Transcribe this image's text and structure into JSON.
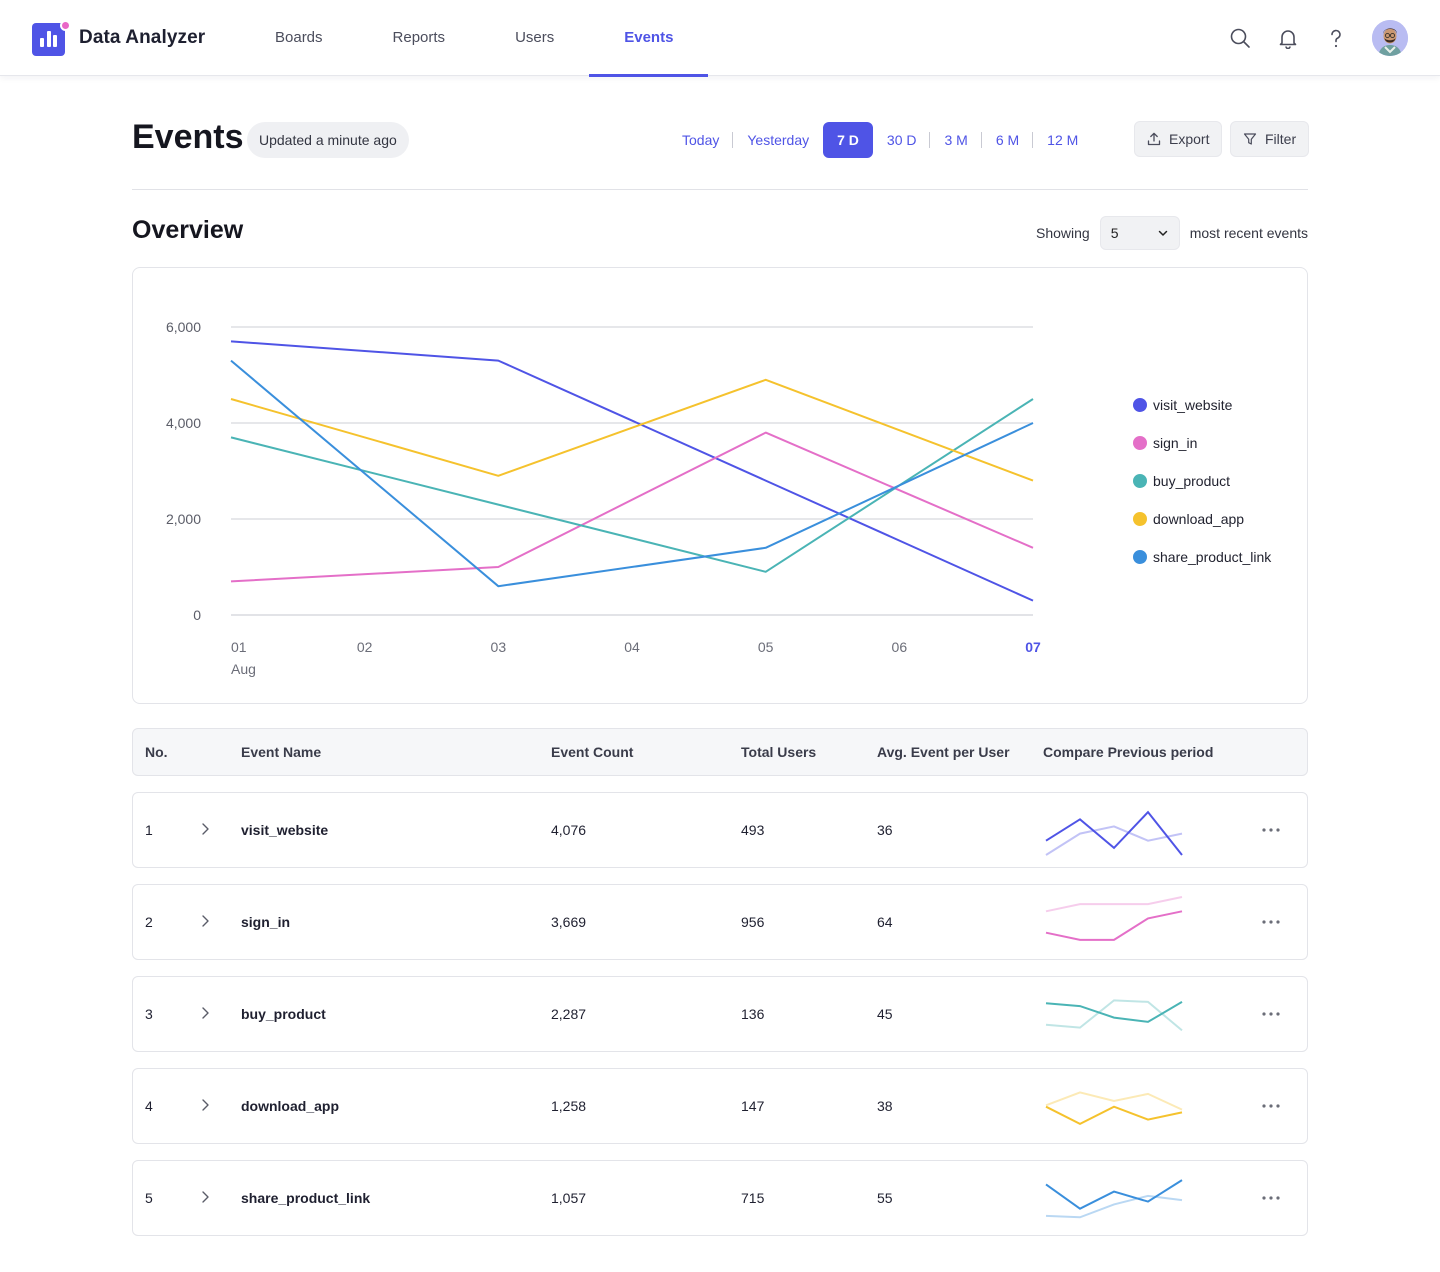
{
  "app": {
    "name": "Data Analyzer"
  },
  "nav": {
    "links": [
      "Boards",
      "Reports",
      "Users",
      "Events"
    ],
    "active": "Events"
  },
  "header": {
    "title": "Events",
    "updated": "Updated a minute ago",
    "ranges": [
      "Today",
      "Yesterday",
      "7 D",
      "30 D",
      "3 M",
      "6 M",
      "12 M"
    ],
    "active_range": "7 D",
    "export_label": "Export",
    "filter_label": "Filter"
  },
  "overview": {
    "title": "Overview",
    "showing_label": "Showing",
    "count": "5",
    "suffix": "most recent events"
  },
  "colors": {
    "accent": "#4f54e6",
    "visit_website": "#4f54e6",
    "sign_in": "#e46fc8",
    "buy_product": "#4ab4b5",
    "download_app": "#f5c22d",
    "share_product_link": "#3a8fdc"
  },
  "chart_data": {
    "type": "line",
    "categories": [
      "01",
      "02",
      "03",
      "04",
      "05",
      "06",
      "07"
    ],
    "x_sublabel": "Aug",
    "highlight_category": "07",
    "ylim": [
      0,
      6000
    ],
    "yticks": [
      0,
      2000,
      4000,
      6000
    ],
    "ytick_labels": [
      "0",
      "2,000",
      "4,000",
      "6,000"
    ],
    "grid": true,
    "legend_position": "right",
    "series": [
      {
        "name": "visit_website",
        "x": [
          "01",
          "03",
          "05",
          "07"
        ],
        "values": [
          5700,
          5300,
          2800,
          300
        ]
      },
      {
        "name": "sign_in",
        "x": [
          "01",
          "03",
          "05",
          "07"
        ],
        "values": [
          700,
          1000,
          3800,
          1400
        ]
      },
      {
        "name": "buy_product",
        "x": [
          "01",
          "03",
          "05",
          "07"
        ],
        "values": [
          3700,
          2300,
          900,
          4500
        ]
      },
      {
        "name": "download_app",
        "x": [
          "01",
          "03",
          "05",
          "07"
        ],
        "values": [
          4500,
          2900,
          4900,
          2800
        ]
      },
      {
        "name": "share_product_link",
        "x": [
          "01",
          "03",
          "05",
          "07"
        ],
        "values": [
          5300,
          600,
          1400,
          4000
        ]
      }
    ]
  },
  "table": {
    "headers": [
      "No.",
      "Event Name",
      "Event Count",
      "Total Users",
      "Avg. Event per User",
      "Compare Previous period"
    ],
    "rows": [
      {
        "no": "1",
        "name": "visit_website",
        "count": "4,076",
        "users": "493",
        "avg": "36",
        "current": [
          2,
          5,
          1,
          6,
          0
        ],
        "previous": [
          0,
          3,
          4,
          2,
          3
        ]
      },
      {
        "no": "2",
        "name": "sign_in",
        "count": "3,669",
        "users": "956",
        "avg": "64",
        "current": [
          2,
          1,
          1,
          4,
          5
        ],
        "previous": [
          5,
          6,
          6,
          6,
          7
        ]
      },
      {
        "no": "3",
        "name": "buy_product",
        "count": "2,287",
        "users": "136",
        "avg": "45",
        "current": [
          5,
          4.6,
          3,
          2.4,
          5.2
        ],
        "previous": [
          2,
          1.6,
          5.4,
          5.2,
          1.2
        ]
      },
      {
        "no": "4",
        "name": "download_app",
        "count": "1,258",
        "users": "147",
        "avg": "38",
        "current": [
          3.4,
          1,
          3.4,
          1.6,
          2.6
        ],
        "previous": [
          3.6,
          5.4,
          4.2,
          5.2,
          3
        ]
      },
      {
        "no": "5",
        "name": "share_product_link",
        "count": "1,057",
        "users": "715",
        "avg": "55",
        "current": [
          5.4,
          2,
          4.4,
          3,
          6
        ],
        "previous": [
          1,
          0.8,
          2.6,
          3.8,
          3.2
        ]
      }
    ]
  }
}
